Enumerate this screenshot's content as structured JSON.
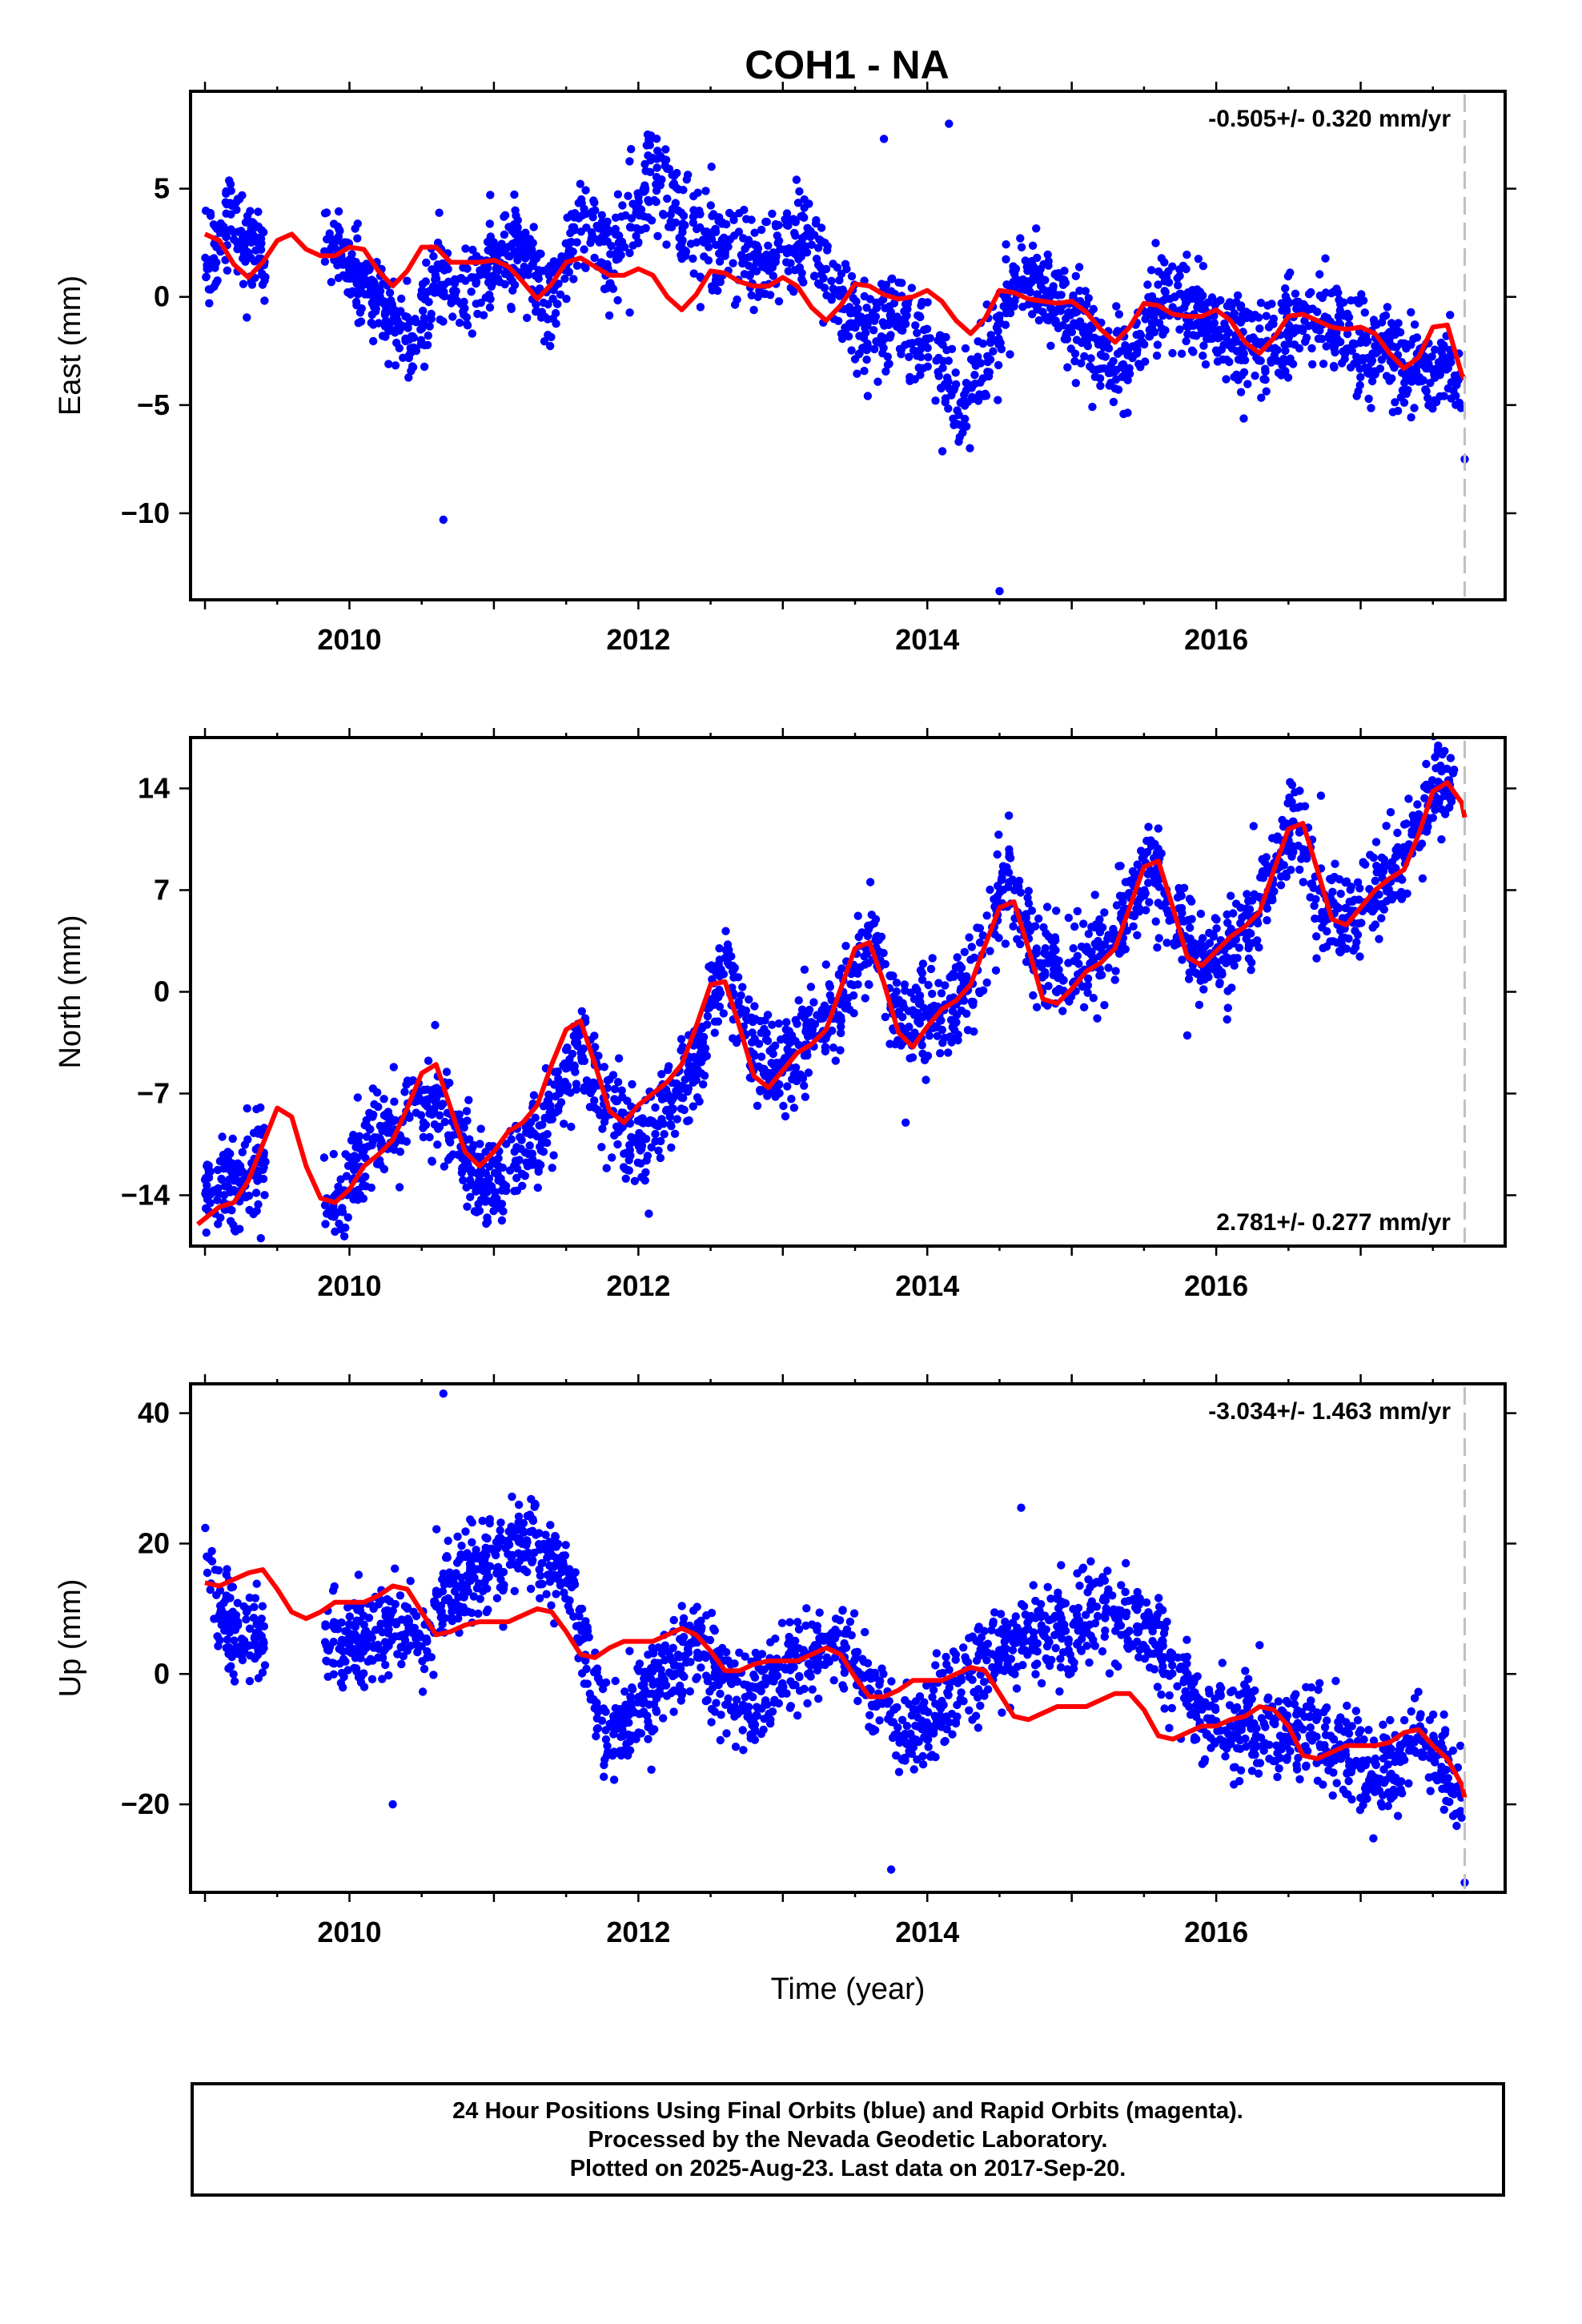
{
  "title": "COH1 - NA",
  "caption": {
    "lines": [
      "24 Hour Positions Using Final Orbits (blue) and Rapid Orbits (magenta).",
      "Processed by the Nevada Geodetic Laboratory.",
      "Plotted on 2025-Aug-23. Last data on 2017-Sep-20."
    ]
  },
  "colors": {
    "data": "#0000ff",
    "model": "#ff0000",
    "last_data_line": "#c0c0c0"
  },
  "chart_data": [
    {
      "type": "scatter",
      "panel": "east",
      "ylabel": "East (mm)",
      "xlabel": "",
      "rate": "-0.505+/- 0.320 mm/yr",
      "rate_position": "top-right",
      "xlim": [
        2008.9,
        2018.0
      ],
      "ylim": [
        -14,
        9.5
      ],
      "xticks": [
        "2010",
        "2012",
        "2014",
        "2016"
      ],
      "yticks": [
        "5",
        "0",
        "−5",
        "−10"
      ],
      "ytick_values": [
        5,
        0,
        -5,
        -10
      ],
      "last_data": 2017.72,
      "series": [
        {
          "kind": "observations",
          "x": [
            2009.0,
            2009.15,
            2009.3,
            2009.5,
            2009.9,
            2010.05,
            2010.3,
            2010.45,
            2010.6,
            2010.8,
            2011.0,
            2011.2,
            2011.4,
            2011.6,
            2011.8,
            2012.0,
            2012.1,
            2012.3,
            2012.5,
            2012.8,
            2013.0,
            2013.2,
            2013.4,
            2013.6,
            2013.8,
            2014.0,
            2014.1,
            2014.25,
            2014.4,
            2014.6,
            2014.8,
            2015.0,
            2015.2,
            2015.4,
            2015.6,
            2015.8,
            2016.0,
            2016.2,
            2016.4,
            2016.6,
            2016.8,
            2017.0,
            2017.2,
            2017.4,
            2017.6,
            2017.7
          ],
          "y": [
            1.0,
            3.5,
            2.5,
            1.5,
            2.5,
            1.0,
            -1.0,
            -2.5,
            1.5,
            0.0,
            1.5,
            2.0,
            -0.5,
            3.5,
            1.5,
            4.0,
            6.5,
            3.5,
            2.5,
            1.5,
            2.5,
            2.5,
            0.0,
            -1.5,
            -1.0,
            -2.0,
            -3.5,
            -5.5,
            -3.0,
            1.0,
            0.5,
            -1.0,
            -2.5,
            -3.0,
            0.0,
            -0.5,
            -1.5,
            -2.5,
            -2.0,
            -1.0,
            -1.5,
            -2.5,
            -2.5,
            -3.5,
            -3.0,
            -4.0
          ]
        },
        {
          "kind": "outliers",
          "x": [
            2010.65,
            2013.7,
            2014.15,
            2014.5,
            2017.72
          ],
          "y": [
            -10.3,
            7.3,
            8.0,
            -13.6,
            -7.5
          ]
        },
        {
          "kind": "model",
          "x": [
            2009.0,
            2009.1,
            2009.2,
            2009.3,
            2009.4,
            2009.5,
            2009.6,
            2009.7,
            2009.8,
            2009.9,
            2010.0,
            2010.1,
            2010.2,
            2010.3,
            2010.4,
            2010.5,
            2010.6,
            2010.7,
            2010.8,
            2010.9,
            2011.0,
            2011.1,
            2011.2,
            2011.3,
            2011.4,
            2011.5,
            2011.6,
            2011.7,
            2011.8,
            2011.9,
            2012.0,
            2012.1,
            2012.2,
            2012.3,
            2012.4,
            2012.5,
            2012.6,
            2012.7,
            2012.8,
            2012.9,
            2013.0,
            2013.1,
            2013.2,
            2013.3,
            2013.4,
            2013.5,
            2013.6,
            2013.7,
            2013.8,
            2013.9,
            2014.0,
            2014.1,
            2014.2,
            2014.3,
            2014.4,
            2014.5,
            2014.6,
            2014.7,
            2014.8,
            2014.9,
            2015.0,
            2015.1,
            2015.2,
            2015.3,
            2015.4,
            2015.5,
            2015.6,
            2015.7,
            2015.8,
            2015.9,
            2016.0,
            2016.1,
            2016.2,
            2016.3,
            2016.4,
            2016.5,
            2016.6,
            2016.7,
            2016.8,
            2016.9,
            2017.0,
            2017.1,
            2017.2,
            2017.3,
            2017.4,
            2017.5,
            2017.6,
            2017.7,
            2017.72
          ],
          "y": [
            2.9,
            2.6,
            1.5,
            0.9,
            1.6,
            2.6,
            2.9,
            2.2,
            1.9,
            1.9,
            2.3,
            2.2,
            1.2,
            0.5,
            1.2,
            2.3,
            2.3,
            1.6,
            1.6,
            1.6,
            1.7,
            1.4,
            0.7,
            -0.1,
            0.6,
            1.6,
            1.8,
            1.4,
            1.0,
            1.0,
            1.3,
            1.0,
            0.0,
            -0.6,
            0.1,
            1.2,
            1.1,
            0.7,
            0.5,
            0.5,
            0.9,
            0.5,
            -0.5,
            -1.1,
            -0.4,
            0.6,
            0.5,
            0.1,
            -0.1,
            0.0,
            0.3,
            -0.2,
            -1.1,
            -1.7,
            -1.0,
            0.3,
            0.2,
            -0.1,
            -0.2,
            -0.3,
            -0.2,
            -0.7,
            -1.5,
            -2.1,
            -1.4,
            -0.3,
            -0.4,
            -0.8,
            -0.9,
            -0.9,
            -0.6,
            -1.1,
            -2.1,
            -2.6,
            -1.9,
            -0.9,
            -0.8,
            -1.1,
            -1.4,
            -1.5,
            -1.4,
            -1.7,
            -2.6,
            -3.3,
            -2.8,
            -1.4,
            -1.3,
            -3.6,
            -3.8
          ]
        }
      ]
    },
    {
      "type": "scatter",
      "panel": "north",
      "ylabel": "North (mm)",
      "xlabel": "",
      "rate": "2.781+/- 0.277 mm/yr",
      "rate_position": "bottom-right",
      "xlim": [
        2008.9,
        2018.0
      ],
      "ylim": [
        -17.5,
        17.5
      ],
      "xticks": [
        "2010",
        "2012",
        "2014",
        "2016"
      ],
      "yticks": [
        "14",
        "7",
        "0",
        "−7",
        "−14"
      ],
      "ytick_values": [
        14,
        7,
        0,
        -7,
        -14
      ],
      "last_data": 2017.72,
      "series": [
        {
          "kind": "observations",
          "x": [
            2009.0,
            2009.2,
            2009.35,
            2009.9,
            2010.1,
            2010.3,
            2010.5,
            2010.7,
            2010.9,
            2011.1,
            2011.3,
            2011.5,
            2011.6,
            2011.8,
            2012.0,
            2012.2,
            2012.4,
            2012.6,
            2012.8,
            2013.0,
            2013.2,
            2013.4,
            2013.6,
            2013.8,
            2014.0,
            2014.2,
            2014.4,
            2014.55,
            2014.7,
            2014.9,
            2015.1,
            2015.3,
            2015.55,
            2015.7,
            2015.9,
            2016.1,
            2016.3,
            2016.55,
            2016.7,
            2016.9,
            2017.1,
            2017.3,
            2017.5,
            2017.65
          ],
          "y": [
            -13,
            -13,
            -12,
            -15,
            -11,
            -9,
            -7,
            -9,
            -13,
            -13,
            -10,
            -6,
            -3,
            -8,
            -11,
            -8,
            -5,
            2,
            -4,
            -5,
            -3,
            -1,
            4,
            -2,
            -2,
            -1,
            3,
            8,
            4,
            1,
            2,
            4,
            9,
            5,
            2,
            3,
            6,
            12,
            7,
            5,
            7,
            9,
            14,
            15
          ]
        },
        {
          "kind": "outliers",
          "x": [
            2013.85,
            2015.8,
            2009.9
          ],
          "y": [
            -9.0,
            -3.0,
            -16.5
          ]
        },
        {
          "kind": "model",
          "x": [
            2008.95,
            2009.1,
            2009.2,
            2009.3,
            2009.4,
            2009.5,
            2009.6,
            2009.7,
            2009.8,
            2009.9,
            2010.0,
            2010.1,
            2010.2,
            2010.3,
            2010.4,
            2010.5,
            2010.6,
            2010.7,
            2010.8,
            2010.9,
            2011.0,
            2011.1,
            2011.2,
            2011.3,
            2011.4,
            2011.5,
            2011.6,
            2011.7,
            2011.8,
            2011.9,
            2012.0,
            2012.1,
            2012.2,
            2012.3,
            2012.4,
            2012.5,
            2012.6,
            2012.7,
            2012.8,
            2012.9,
            2013.0,
            2013.1,
            2013.2,
            2013.3,
            2013.4,
            2013.5,
            2013.6,
            2013.7,
            2013.8,
            2013.9,
            2014.0,
            2014.1,
            2014.2,
            2014.3,
            2014.4,
            2014.5,
            2014.6,
            2014.7,
            2014.8,
            2014.9,
            2015.0,
            2015.1,
            2015.2,
            2015.3,
            2015.4,
            2015.5,
            2015.6,
            2015.7,
            2015.8,
            2015.9,
            2016.0,
            2016.1,
            2016.2,
            2016.3,
            2016.4,
            2016.5,
            2016.6,
            2016.7,
            2016.8,
            2016.9,
            2017.0,
            2017.1,
            2017.2,
            2017.3,
            2017.4,
            2017.5,
            2017.6,
            2017.7,
            2017.72
          ],
          "y": [
            -16.0,
            -14.8,
            -14.5,
            -13.0,
            -10.5,
            -8.0,
            -8.6,
            -12.0,
            -14.2,
            -14.5,
            -13.6,
            -12.0,
            -11.2,
            -10.2,
            -8.0,
            -5.6,
            -5.0,
            -8.0,
            -11.0,
            -12.0,
            -11.0,
            -9.6,
            -9.0,
            -7.8,
            -5.0,
            -2.6,
            -2.0,
            -5.0,
            -8.2,
            -9.0,
            -7.8,
            -7.0,
            -6.2,
            -5.0,
            -2.4,
            0.5,
            0.7,
            -2.4,
            -5.8,
            -6.6,
            -5.4,
            -4.2,
            -3.6,
            -2.6,
            0.2,
            3.0,
            3.4,
            0.6,
            -2.8,
            -3.8,
            -2.4,
            -1.2,
            -0.6,
            0.5,
            3.2,
            5.8,
            6.2,
            3.0,
            -0.5,
            -0.8,
            0.2,
            1.4,
            2.0,
            3.0,
            5.8,
            8.6,
            9.0,
            5.8,
            2.4,
            1.8,
            2.8,
            3.8,
            4.5,
            5.5,
            8.4,
            11.2,
            11.6,
            8.4,
            5.0,
            4.6,
            5.8,
            7.0,
            7.8,
            8.4,
            10.8,
            13.8,
            14.4,
            13.0,
            12.0
          ]
        }
      ]
    },
    {
      "type": "scatter",
      "panel": "up",
      "ylabel": "Up (mm)",
      "xlabel": "Time (year)",
      "rate": "-3.034+/- 1.463 mm/yr",
      "rate_position": "top-right",
      "xlim": [
        2008.9,
        2018.0
      ],
      "ylim": [
        -33.5,
        44.5
      ],
      "xticks": [
        "2010",
        "2012",
        "2014",
        "2016"
      ],
      "yticks": [
        "40",
        "20",
        "0",
        "−20"
      ],
      "ytick_values": [
        40,
        20,
        0,
        -20
      ],
      "last_data": 2017.72,
      "series": [
        {
          "kind": "observations",
          "x": [
            2009.0,
            2009.1,
            2009.25,
            2009.9,
            2010.1,
            2010.3,
            2010.5,
            2010.7,
            2010.9,
            2011.1,
            2011.3,
            2011.5,
            2011.8,
            2012.0,
            2012.2,
            2012.4,
            2012.6,
            2012.8,
            2013.0,
            2013.2,
            2013.4,
            2013.6,
            2013.8,
            2014.0,
            2014.2,
            2014.4,
            2014.6,
            2014.8,
            2015.0,
            2015.2,
            2015.4,
            2015.6,
            2015.8,
            2016.0,
            2016.2,
            2016.4,
            2016.6,
            2016.8,
            2017.0,
            2017.2,
            2017.4,
            2017.6,
            2017.7
          ],
          "y": [
            20,
            10,
            5,
            5,
            5,
            8,
            5,
            14,
            15,
            20,
            20,
            15,
            -10,
            -5,
            0,
            5,
            -2,
            -5,
            2,
            2,
            5,
            0,
            -10,
            -8,
            -2,
            2,
            5,
            8,
            6,
            10,
            8,
            5,
            -3,
            -8,
            -8,
            -10,
            -8,
            -10,
            -15,
            -15,
            -10,
            -15,
            -18
          ]
        },
        {
          "kind": "outliers",
          "x": [
            2010.65,
            2010.3,
            2014.65,
            2013.75,
            2017.72
          ],
          "y": [
            43,
            -20,
            25.5,
            -30,
            -32
          ]
        },
        {
          "kind": "model",
          "x": [
            2009.0,
            2009.1,
            2009.2,
            2009.3,
            2009.4,
            2009.5,
            2009.6,
            2009.7,
            2009.8,
            2009.9,
            2010.0,
            2010.1,
            2010.2,
            2010.3,
            2010.4,
            2010.5,
            2010.6,
            2010.7,
            2010.8,
            2010.9,
            2011.0,
            2011.1,
            2011.2,
            2011.3,
            2011.4,
            2011.5,
            2011.6,
            2011.7,
            2011.8,
            2011.9,
            2012.0,
            2012.1,
            2012.2,
            2012.3,
            2012.4,
            2012.5,
            2012.6,
            2012.7,
            2012.8,
            2012.9,
            2013.0,
            2013.1,
            2013.2,
            2013.3,
            2013.4,
            2013.5,
            2013.6,
            2013.7,
            2013.8,
            2013.9,
            2014.0,
            2014.1,
            2014.2,
            2014.3,
            2014.4,
            2014.5,
            2014.6,
            2014.7,
            2014.8,
            2014.9,
            2015.0,
            2015.1,
            2015.2,
            2015.3,
            2015.4,
            2015.5,
            2015.6,
            2015.7,
            2015.8,
            2015.9,
            2016.0,
            2016.1,
            2016.2,
            2016.3,
            2016.4,
            2016.5,
            2016.6,
            2016.7,
            2016.8,
            2016.9,
            2017.0,
            2017.1,
            2017.2,
            2017.3,
            2017.4,
            2017.5,
            2017.6,
            2017.7,
            2017.72
          ],
          "y": [
            14,
            13.5,
            14.5,
            15.5,
            16,
            13,
            9.5,
            8.5,
            9.5,
            11,
            11,
            11,
            12,
            13.5,
            13,
            9.5,
            6,
            6.5,
            7.5,
            8,
            8,
            8,
            9,
            10,
            9.5,
            6.5,
            3,
            2.5,
            4,
            5,
            5,
            5,
            6,
            7,
            6,
            3.5,
            0.5,
            0.5,
            1.5,
            2,
            2,
            2,
            3,
            4,
            3,
            -0.5,
            -3.5,
            -3.5,
            -2.5,
            -1,
            -1,
            -1,
            0,
            1,
            0.5,
            -3,
            -6.5,
            -7,
            -6,
            -5,
            -5,
            -5,
            -4,
            -3,
            -3,
            -5.5,
            -9.5,
            -10,
            -9,
            -8,
            -8,
            -7,
            -6.5,
            -5,
            -5.5,
            -8,
            -12.5,
            -13,
            -12,
            -11,
            -11,
            -11,
            -10.5,
            -9,
            -8.5,
            -11,
            -13,
            -17,
            -19
          ]
        }
      ]
    }
  ]
}
